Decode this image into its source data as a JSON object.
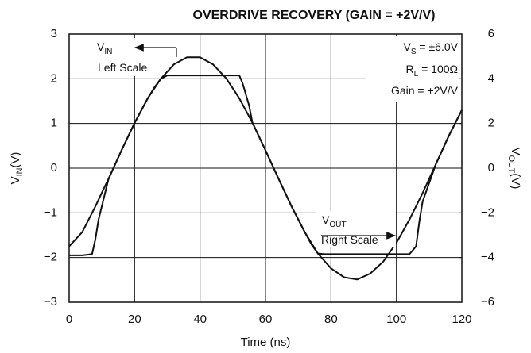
{
  "chart_data": {
    "type": "line",
    "title": "OVERDRIVE RECOVERY (GAIN = +2V/V)",
    "xlabel": "Time (ns)",
    "ylabel": {
      "main": "V",
      "sub": "IN",
      "rest": "(V)"
    },
    "y2label": {
      "main": "V",
      "sub": "OUT",
      "rest": "(V)"
    },
    "xlim": [
      0,
      120
    ],
    "xticks": [
      0,
      20,
      40,
      60,
      80,
      100,
      120
    ],
    "ylim": [
      -3,
      3
    ],
    "yticks": [
      {
        "value": -3,
        "label": "−3"
      },
      {
        "value": -2,
        "label": "−2"
      },
      {
        "value": -1,
        "label": "−1"
      },
      0,
      1,
      2,
      3
    ],
    "y2lim": [
      -6,
      6
    ],
    "y2ticks": [
      {
        "value": -6,
        "label": "−6"
      },
      {
        "value": -4,
        "label": "−4"
      },
      {
        "value": -2,
        "label": "−2"
      },
      0,
      2,
      4,
      6
    ],
    "grid": true,
    "series": [
      {
        "color": "#111111",
        "x": [
          0,
          4,
          8,
          12,
          16,
          20,
          24,
          28,
          32,
          36,
          40,
          44,
          48,
          52,
          56,
          60,
          64,
          68,
          72,
          76,
          80,
          84,
          88,
          92,
          96,
          100,
          104,
          108,
          112,
          116,
          120
        ],
        "values": [
          -1.75,
          -1.43,
          -0.86,
          -0.24,
          0.4,
          1.01,
          1.56,
          2.0,
          2.32,
          2.48,
          2.48,
          2.32,
          2.01,
          1.56,
          1.02,
          0.4,
          -0.24,
          -0.86,
          -1.43,
          -1.91,
          -2.24,
          -2.44,
          -2.49,
          -2.36,
          -2.09,
          -1.67,
          -1.15,
          -0.56,
          0.08,
          0.72,
          1.3
        ]
      },
      {
        "color": "#111111",
        "axis": "y2",
        "x": [
          0,
          4,
          7,
          8,
          9,
          12,
          16,
          20,
          24,
          26,
          28,
          30,
          36,
          44,
          52,
          53,
          55,
          56,
          60,
          64,
          68,
          72,
          74,
          76,
          78,
          90,
          104,
          106,
          107,
          108,
          112,
          116,
          120
        ],
        "values": [
          -3.9,
          -3.9,
          -3.85,
          -3.2,
          -2.3,
          -0.5,
          0.8,
          2.02,
          3.12,
          3.6,
          4.0,
          4.15,
          4.15,
          4.15,
          4.15,
          3.8,
          2.8,
          2.04,
          0.8,
          -0.48,
          -1.72,
          -2.86,
          -3.4,
          -3.82,
          -3.85,
          -3.85,
          -3.85,
          -3.5,
          -2.4,
          -1.5,
          0.16,
          1.44,
          2.6
        ]
      }
    ],
    "annotations": [
      {
        "main": "V",
        "sub": "IN"
      },
      {
        "main": "Left Scale"
      },
      {
        "main": "V",
        "sub": "OUT"
      },
      {
        "main": "Right Scale"
      },
      {
        "main": "V",
        "sub": "S",
        "rest": " = ±6.0V"
      },
      {
        "main": "R",
        "sub": "L",
        "rest": " = 100Ω"
      },
      {
        "main": "Gain = +2V/V"
      }
    ]
  }
}
